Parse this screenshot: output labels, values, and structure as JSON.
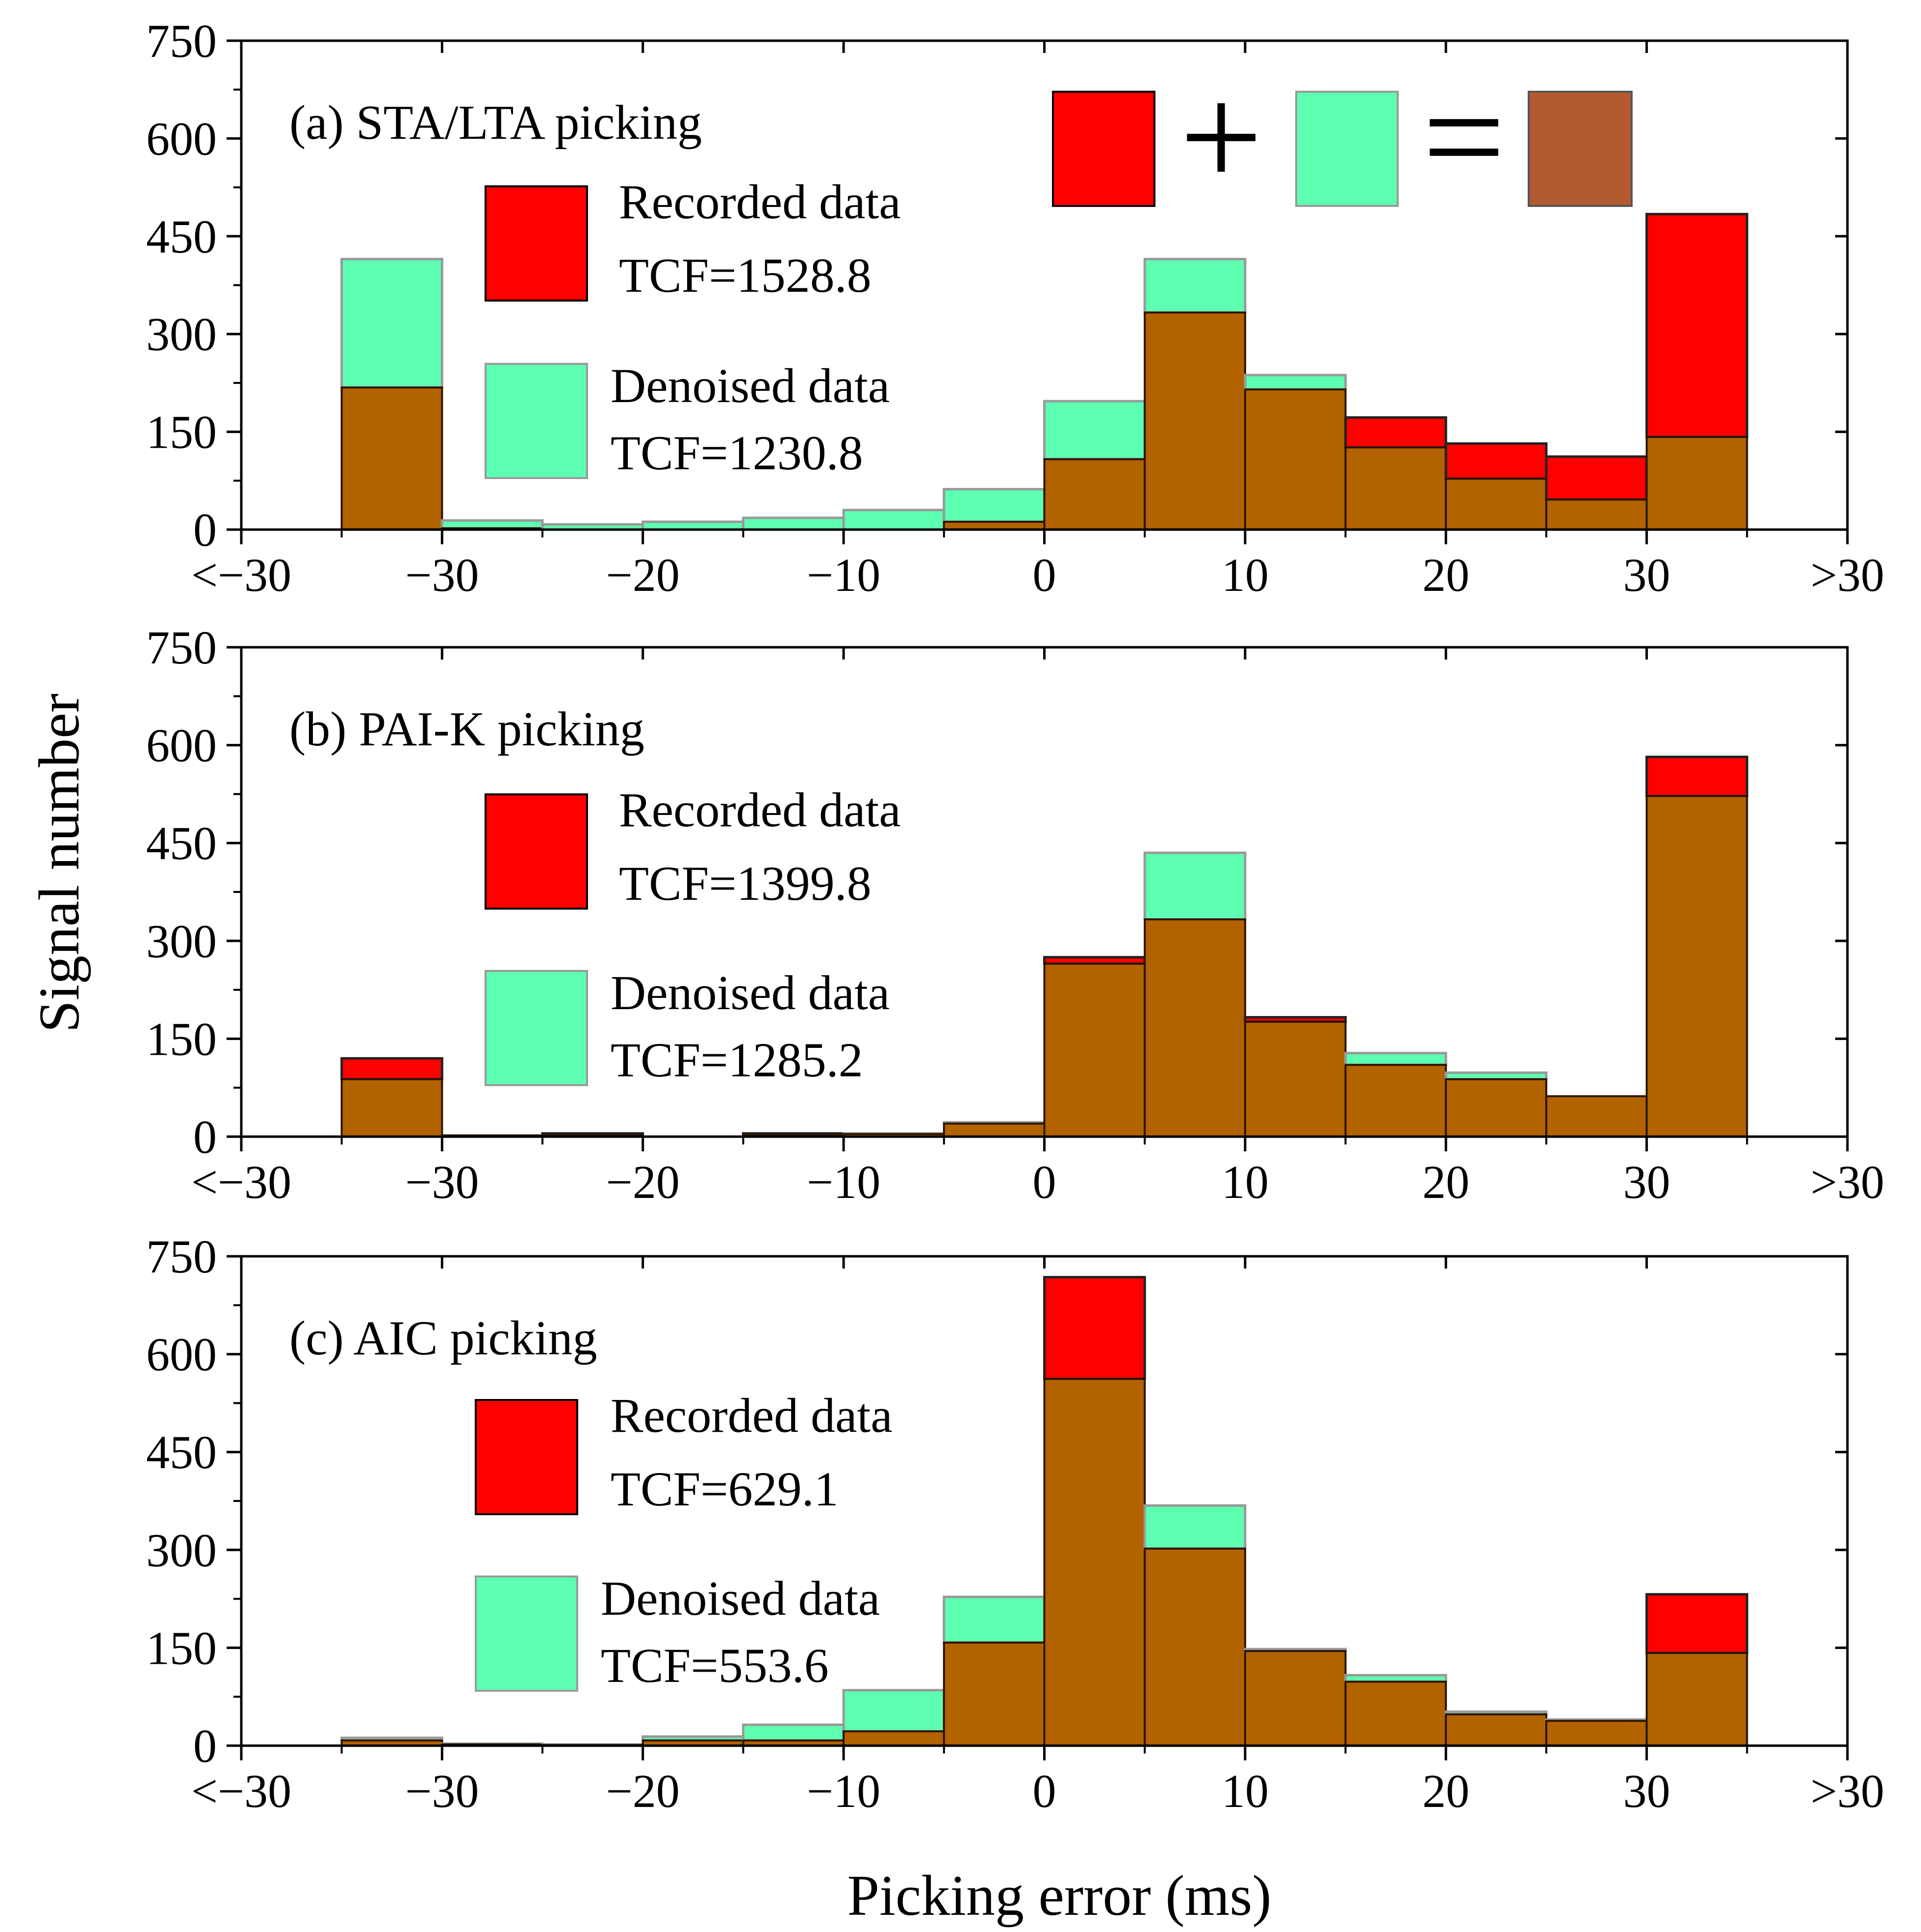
{
  "figure": {
    "y_axis_title": "Signal number",
    "x_axis_title": "Picking error (ms)",
    "combo_legend": {
      "recorded_color": "#ff0000",
      "denoised_color": "#5dffb0",
      "overlap_color": "#b35a30",
      "plus_symbol": "+",
      "equals_symbol": "="
    }
  },
  "chart_data": [
    {
      "type": "bar",
      "title": "(a) STA/LTA picking",
      "xlabel": "Picking error (ms)",
      "ylabel": "Signal number",
      "xlim": [
        -40,
        40
      ],
      "ylim": [
        0,
        750
      ],
      "x_tick_values": [
        -40,
        -30,
        -20,
        -10,
        0,
        10,
        20,
        30,
        40
      ],
      "x_tick_labels": [
        "<−30",
        "−30",
        "−20",
        "−10",
        "0",
        "10",
        "20",
        "30",
        ">30"
      ],
      "y_tick_values": [
        0,
        150,
        300,
        450,
        600,
        750
      ],
      "y_tick_labels": [
        "0",
        "150",
        "300",
        "450",
        "600",
        "750"
      ],
      "bins": [
        [
          -35,
          -30
        ],
        [
          -30,
          -25
        ],
        [
          -25,
          -20
        ],
        [
          -20,
          -15
        ],
        [
          -15,
          -10
        ],
        [
          -10,
          -5
        ],
        [
          -5,
          0
        ],
        [
          0,
          5
        ],
        [
          5,
          10
        ],
        [
          10,
          15
        ],
        [
          15,
          20
        ],
        [
          20,
          25
        ],
        [
          25,
          30
        ],
        [
          30,
          35
        ]
      ],
      "series": [
        {
          "name": "Recorded data",
          "color": "#ff0000",
          "values": [
            218,
            2,
            0,
            0,
            0,
            0,
            12,
            108,
            333,
            215,
            172,
            132,
            112,
            484
          ]
        },
        {
          "name": "Denoised data",
          "color": "#5dffb0",
          "values": [
            415,
            14,
            8,
            12,
            18,
            30,
            62,
            197,
            415,
            237,
            126,
            78,
            46,
            142
          ]
        }
      ],
      "legend": [
        {
          "label": "Recorded data",
          "tcf": "TCF=1528.8",
          "color": "#ff0000"
        },
        {
          "label": "Denoised data",
          "tcf": "TCF=1230.8",
          "color": "#5dffb0"
        }
      ]
    },
    {
      "type": "bar",
      "title": "(b) PAI-K picking",
      "xlabel": "Picking error (ms)",
      "ylabel": "Signal number",
      "xlim": [
        -40,
        40
      ],
      "ylim": [
        0,
        750
      ],
      "x_tick_values": [
        -40,
        -30,
        -20,
        -10,
        0,
        10,
        20,
        30,
        40
      ],
      "x_tick_labels": [
        "<−30",
        "−30",
        "−20",
        "−10",
        "0",
        "10",
        "20",
        "30",
        ">30"
      ],
      "y_tick_values": [
        0,
        150,
        300,
        450,
        600,
        750
      ],
      "y_tick_labels": [
        "0",
        "150",
        "300",
        "450",
        "600",
        "750"
      ],
      "bins": [
        [
          -35,
          -30
        ],
        [
          -30,
          -25
        ],
        [
          -25,
          -20
        ],
        [
          -20,
          -15
        ],
        [
          -15,
          -10
        ],
        [
          -10,
          -5
        ],
        [
          -5,
          0
        ],
        [
          0,
          5
        ],
        [
          5,
          10
        ],
        [
          10,
          15
        ],
        [
          15,
          20
        ],
        [
          20,
          25
        ],
        [
          25,
          30
        ],
        [
          30,
          35
        ]
      ],
      "series": [
        {
          "name": "Recorded data",
          "color": "#ff0000",
          "values": [
            120,
            2,
            5,
            0,
            5,
            4,
            20,
            275,
            333,
            183,
            110,
            88,
            62,
            582
          ]
        },
        {
          "name": "Denoised data",
          "color": "#5dffb0",
          "values": [
            88,
            2,
            3,
            0,
            3,
            5,
            22,
            265,
            435,
            176,
            128,
            98,
            62,
            522
          ]
        }
      ],
      "legend": [
        {
          "label": "Recorded data",
          "tcf": "TCF=1399.8",
          "color": "#ff0000"
        },
        {
          "label": "Denoised data",
          "tcf": "TCF=1285.2",
          "color": "#5dffb0"
        }
      ]
    },
    {
      "type": "bar",
      "title": "(c) AIC picking",
      "xlabel": "Picking error (ms)",
      "ylabel": "Signal number",
      "xlim": [
        -40,
        40
      ],
      "ylim": [
        0,
        750
      ],
      "x_tick_values": [
        -40,
        -30,
        -20,
        -10,
        0,
        10,
        20,
        30,
        40
      ],
      "x_tick_labels": [
        "<−30",
        "−30",
        "−20",
        "−10",
        "0",
        "10",
        "20",
        "30",
        ">30"
      ],
      "y_tick_values": [
        0,
        150,
        300,
        450,
        600,
        750
      ],
      "y_tick_labels": [
        "0",
        "150",
        "300",
        "450",
        "600",
        "750"
      ],
      "bins": [
        [
          -35,
          -30
        ],
        [
          -30,
          -25
        ],
        [
          -25,
          -20
        ],
        [
          -20,
          -15
        ],
        [
          -15,
          -10
        ],
        [
          -10,
          -5
        ],
        [
          -5,
          0
        ],
        [
          0,
          5
        ],
        [
          5,
          10
        ],
        [
          10,
          15
        ],
        [
          15,
          20
        ],
        [
          20,
          25
        ],
        [
          25,
          30
        ],
        [
          30,
          35
        ]
      ],
      "series": [
        {
          "name": "Recorded data",
          "color": "#ff0000",
          "values": [
            8,
            2,
            1,
            8,
            8,
            22,
            158,
            718,
            302,
            145,
            98,
            48,
            38,
            232
          ]
        },
        {
          "name": "Denoised data",
          "color": "#5dffb0",
          "values": [
            12,
            3,
            2,
            14,
            32,
            85,
            228,
            562,
            368,
            148,
            108,
            52,
            40,
            142
          ]
        }
      ],
      "legend": [
        {
          "label": "Recorded data",
          "tcf": "TCF=629.1",
          "color": "#ff0000"
        },
        {
          "label": "Denoised data",
          "tcf": "TCF=553.6",
          "color": "#5dffb0"
        }
      ]
    }
  ]
}
